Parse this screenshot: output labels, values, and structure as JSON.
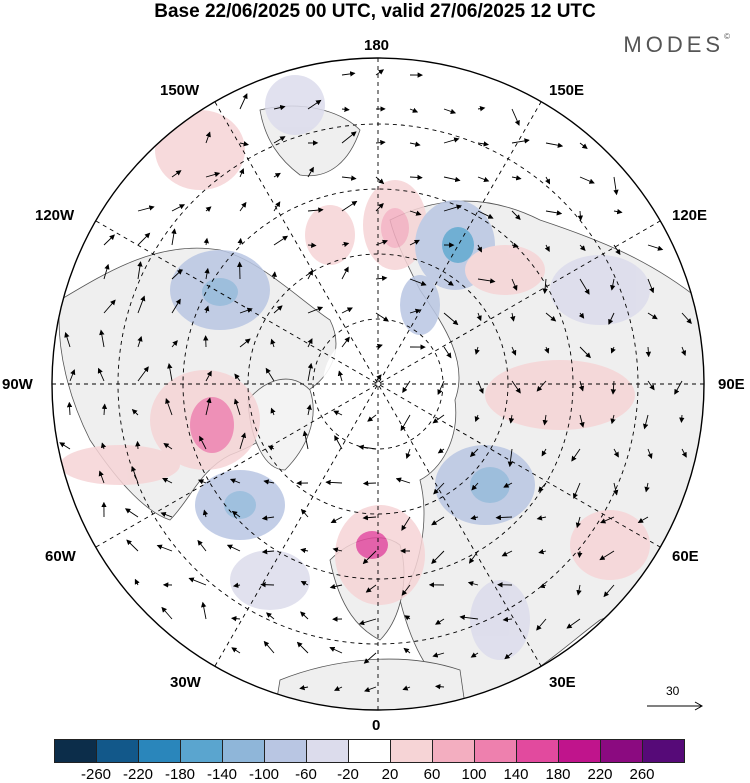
{
  "header": {
    "title": "Base 22/06/2025 00 UTC, valid 27/06/2025 12 UTC",
    "brand": "MODES",
    "brand_mark": "©"
  },
  "map": {
    "projection": "north-polar-stereographic",
    "longitude_labels": {
      "top": "180",
      "bottom": "0",
      "left": "90W",
      "right": "90E",
      "upper_left_1": "150W",
      "upper_left_2": "120W",
      "lower_left_1": "60W",
      "lower_left_2": "30W",
      "upper_right_1": "150E",
      "upper_right_2": "120E",
      "lower_right_1": "60E",
      "lower_right_2": "30E"
    },
    "colors": {
      "land": "#efefef",
      "coast": "#555555",
      "grid": "#000000"
    },
    "anomalies": [
      {
        "sign": "negative",
        "region": "Siberia near 150E",
        "peak_bin": "-140"
      },
      {
        "sign": "negative",
        "region": "Alaska / Gulf of Alaska",
        "peak_bin": "-140"
      },
      {
        "sign": "negative",
        "region": "North Atlantic west",
        "peak_bin": "-140"
      },
      {
        "sign": "negative",
        "region": "Scandinavia / Russia",
        "peak_bin": "-100"
      },
      {
        "sign": "positive",
        "region": "Canada / Hudson Bay",
        "peak_bin": "140"
      },
      {
        "sign": "positive",
        "region": "British Isles / Europe",
        "peak_bin": "180"
      },
      {
        "sign": "positive",
        "region": "Bering Strait",
        "peak_bin": "100"
      },
      {
        "sign": "positive",
        "region": "Central Siberia",
        "peak_bin": "60"
      }
    ]
  },
  "wind_reference": {
    "value": "30"
  },
  "colorbar": {
    "ticks": [
      "-260",
      "-220",
      "-180",
      "-140",
      "-100",
      "-60",
      "-20",
      "20",
      "60",
      "100",
      "140",
      "180",
      "220",
      "260"
    ],
    "colors": [
      "#0c2d4a",
      "#12588a",
      "#2a86bb",
      "#5aa5cf",
      "#8fb6d9",
      "#b9c6e3",
      "#dcdcec",
      "#ffffff",
      "#f6d4d6",
      "#f3aec0",
      "#ee80ae",
      "#e24a9e",
      "#c0148c",
      "#8b0a80",
      "#560a78"
    ]
  }
}
